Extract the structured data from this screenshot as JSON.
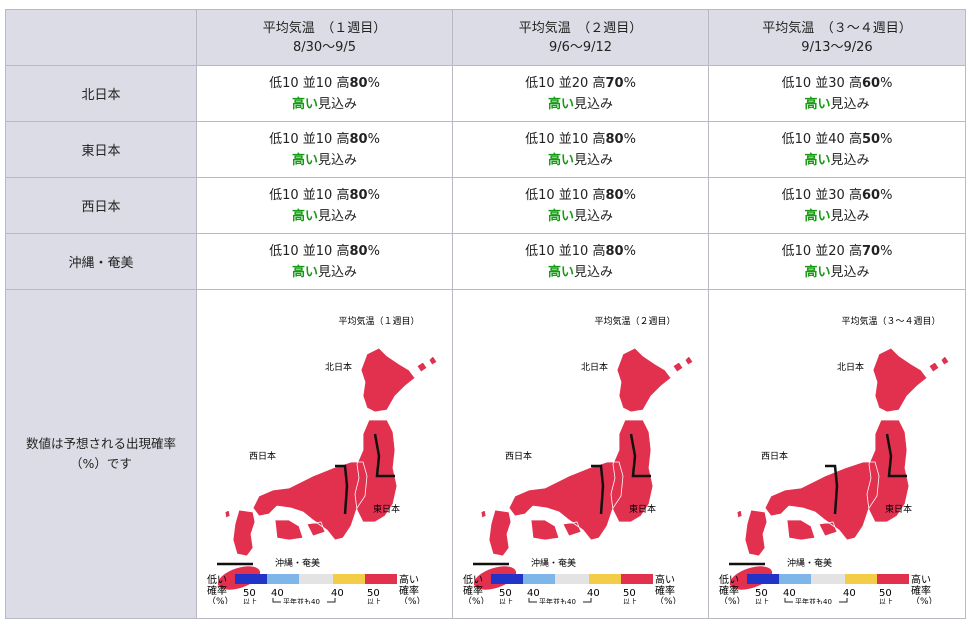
{
  "header": {
    "periods": [
      {
        "title": "平均気温　（１週目）",
        "dates": "8/30〜9/5"
      },
      {
        "title": "平均気温　（２週目）",
        "dates": "9/6〜9/12"
      },
      {
        "title": "平均気温　（３〜４週目）",
        "dates": "9/13〜9/26"
      }
    ]
  },
  "rows": [
    {
      "region": "北日本",
      "cells": [
        {
          "low": "低10",
          "mid": "並10",
          "high_prefix": "高",
          "high_value": "80",
          "unit": "%",
          "outlook_em": "高い",
          "outlook_rest": "見込み"
        },
        {
          "low": "低10",
          "mid": "並20",
          "high_prefix": "高",
          "high_value": "70",
          "unit": "%",
          "outlook_em": "高い",
          "outlook_rest": "見込み"
        },
        {
          "low": "低10",
          "mid": "並30",
          "high_prefix": "高",
          "high_value": "60",
          "unit": "%",
          "outlook_em": "高い",
          "outlook_rest": "見込み"
        }
      ]
    },
    {
      "region": "東日本",
      "cells": [
        {
          "low": "低10",
          "mid": "並10",
          "high_prefix": "高",
          "high_value": "80",
          "unit": "%",
          "outlook_em": "高い",
          "outlook_rest": "見込み"
        },
        {
          "low": "低10",
          "mid": "並10",
          "high_prefix": "高",
          "high_value": "80",
          "unit": "%",
          "outlook_em": "高い",
          "outlook_rest": "見込み"
        },
        {
          "low": "低10",
          "mid": "並40",
          "high_prefix": "高",
          "high_value": "50",
          "unit": "%",
          "outlook_em": "高い",
          "outlook_rest": "見込み"
        }
      ]
    },
    {
      "region": "西日本",
      "cells": [
        {
          "low": "低10",
          "mid": "並10",
          "high_prefix": "高",
          "high_value": "80",
          "unit": "%",
          "outlook_em": "高い",
          "outlook_rest": "見込み"
        },
        {
          "low": "低10",
          "mid": "並10",
          "high_prefix": "高",
          "high_value": "80",
          "unit": "%",
          "outlook_em": "高い",
          "outlook_rest": "見込み"
        },
        {
          "low": "低10",
          "mid": "並30",
          "high_prefix": "高",
          "high_value": "60",
          "unit": "%",
          "outlook_em": "高い",
          "outlook_rest": "見込み"
        }
      ]
    },
    {
      "region": "沖縄・奄美",
      "cells": [
        {
          "low": "低10",
          "mid": "並10",
          "high_prefix": "高",
          "high_value": "80",
          "unit": "%",
          "outlook_em": "高い",
          "outlook_rest": "見込み"
        },
        {
          "low": "低10",
          "mid": "並10",
          "high_prefix": "高",
          "high_value": "80",
          "unit": "%",
          "outlook_em": "高い",
          "outlook_rest": "見込み"
        },
        {
          "low": "低10",
          "mid": "並20",
          "high_prefix": "高",
          "high_value": "70",
          "unit": "%",
          "outlook_em": "高い",
          "outlook_rest": "見込み"
        }
      ]
    }
  ],
  "map_row": {
    "label_line1": "数値は予想される出現確率",
    "label_line2": "（%）です",
    "maps": [
      {
        "title": "平均気温（１週目）"
      },
      {
        "title": "平均気温（２週目）"
      },
      {
        "title": "平均気温（３〜４週目）"
      }
    ],
    "region_labels": {
      "north": "北日本",
      "east": "東日本",
      "west": "西日本",
      "okinawa": "沖縄・奄美"
    },
    "legend": {
      "low_label_1": "低い",
      "low_label_2": "確率",
      "high_label_1": "高い",
      "high_label_2": "確率",
      "pct_left": "（%）",
      "pct_right": "（%）",
      "ticks": [
        "50",
        "40",
        "40",
        "50"
      ],
      "ijou": "以上",
      "normal_note": "平年並も40",
      "colors": {
        "low_strong": "#2233c8",
        "low_weak": "#7fb6ea",
        "normal": "#e3e3e3",
        "high_weak": "#f3cd47",
        "high_strong": "#e2304f"
      }
    },
    "colors": {
      "high": "#e2304f",
      "boundary": "#111111"
    }
  }
}
